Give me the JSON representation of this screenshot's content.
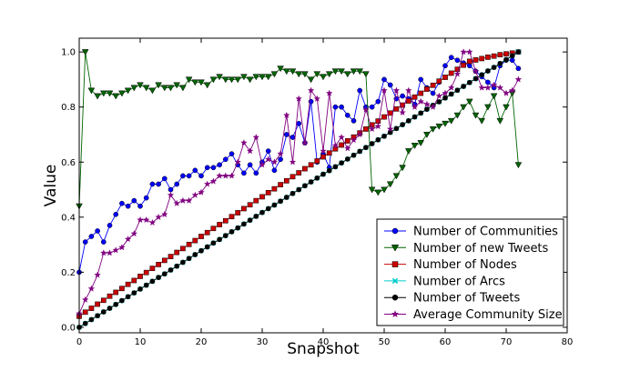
{
  "chart_data": {
    "type": "line",
    "title": "",
    "xlabel": "Snapshot",
    "ylabel": "Value",
    "xlim": [
      0,
      80
    ],
    "ylim": [
      -0.02,
      1.05
    ],
    "xticks": [
      0,
      10,
      20,
      30,
      40,
      50,
      60,
      70,
      80
    ],
    "yticks": [
      0.0,
      0.2,
      0.4,
      0.6,
      0.8,
      1.0
    ],
    "grid": false,
    "legend_position": "lower-right",
    "series": [
      {
        "name": "Number of Communities",
        "color": "#0000ff",
        "marker": "circle",
        "values": [
          0.2,
          0.31,
          0.33,
          0.35,
          0.31,
          0.37,
          0.41,
          0.45,
          0.44,
          0.46,
          0.44,
          0.47,
          0.52,
          0.52,
          0.54,
          0.5,
          0.52,
          0.55,
          0.55,
          0.57,
          0.55,
          0.58,
          0.58,
          0.59,
          0.61,
          0.63,
          0.59,
          0.56,
          0.59,
          0.56,
          0.6,
          0.64,
          0.57,
          0.61,
          0.7,
          0.69,
          0.74,
          0.67,
          0.82,
          0.6,
          0.63,
          0.58,
          0.8,
          0.8,
          0.77,
          0.75,
          0.86,
          0.8,
          0.8,
          0.82,
          0.9,
          0.88,
          0.83,
          0.84,
          0.83,
          0.81,
          0.9,
          0.87,
          0.85,
          0.89,
          0.95,
          0.98,
          0.97,
          0.96,
          0.95,
          0.93,
          0.91,
          0.89,
          0.87,
          0.95,
          0.97,
          0.97,
          0.94
        ]
      },
      {
        "name": "Number of new Tweets",
        "color": "#006400",
        "marker": "triangle-down",
        "values": [
          0.44,
          1.0,
          0.86,
          0.84,
          0.85,
          0.85,
          0.84,
          0.85,
          0.86,
          0.87,
          0.88,
          0.87,
          0.86,
          0.88,
          0.87,
          0.87,
          0.88,
          0.87,
          0.9,
          0.89,
          0.89,
          0.88,
          0.9,
          0.91,
          0.9,
          0.9,
          0.9,
          0.91,
          0.9,
          0.91,
          0.91,
          0.91,
          0.92,
          0.94,
          0.93,
          0.93,
          0.92,
          0.92,
          0.9,
          0.92,
          0.91,
          0.92,
          0.93,
          0.93,
          0.92,
          0.93,
          0.93,
          0.92,
          0.5,
          0.49,
          0.5,
          0.52,
          0.55,
          0.58,
          0.64,
          0.66,
          0.67,
          0.7,
          0.72,
          0.73,
          0.74,
          0.75,
          0.77,
          0.8,
          0.82,
          0.77,
          0.75,
          0.8,
          0.84,
          0.75,
          0.8,
          0.85,
          0.59
        ]
      },
      {
        "name": "Number of Nodes",
        "color": "#cc0000",
        "marker": "square",
        "values": [
          0.04,
          0.055,
          0.069,
          0.084,
          0.098,
          0.113,
          0.127,
          0.141,
          0.156,
          0.17,
          0.185,
          0.199,
          0.214,
          0.228,
          0.243,
          0.257,
          0.272,
          0.286,
          0.301,
          0.315,
          0.33,
          0.344,
          0.359,
          0.373,
          0.387,
          0.402,
          0.416,
          0.431,
          0.445,
          0.46,
          0.474,
          0.489,
          0.503,
          0.518,
          0.532,
          0.547,
          0.561,
          0.576,
          0.59,
          0.604,
          0.619,
          0.633,
          0.648,
          0.662,
          0.677,
          0.691,
          0.706,
          0.72,
          0.735,
          0.749,
          0.764,
          0.778,
          0.793,
          0.807,
          0.822,
          0.836,
          0.85,
          0.865,
          0.879,
          0.894,
          0.908,
          0.923,
          0.937,
          0.952,
          0.966,
          0.971,
          0.976,
          0.981,
          0.985,
          0.99,
          0.993,
          0.996,
          1.0
        ]
      },
      {
        "name": "Number of Arcs",
        "color": "#00cccc",
        "marker": "x",
        "values": [
          0.0,
          0.014,
          0.028,
          0.042,
          0.056,
          0.069,
          0.083,
          0.097,
          0.111,
          0.125,
          0.139,
          0.153,
          0.167,
          0.181,
          0.194,
          0.208,
          0.222,
          0.236,
          0.25,
          0.264,
          0.278,
          0.292,
          0.306,
          0.319,
          0.333,
          0.347,
          0.361,
          0.375,
          0.389,
          0.403,
          0.417,
          0.431,
          0.444,
          0.458,
          0.472,
          0.486,
          0.5,
          0.514,
          0.528,
          0.542,
          0.556,
          0.569,
          0.583,
          0.597,
          0.611,
          0.625,
          0.639,
          0.653,
          0.667,
          0.681,
          0.694,
          0.708,
          0.722,
          0.736,
          0.75,
          0.764,
          0.778,
          0.792,
          0.806,
          0.819,
          0.833,
          0.847,
          0.861,
          0.875,
          0.889,
          0.903,
          0.917,
          0.931,
          0.944,
          0.958,
          0.972,
          0.986,
          1.0
        ]
      },
      {
        "name": "Number of Tweets",
        "color": "#000000",
        "marker": "circle",
        "values": [
          0.0,
          0.014,
          0.028,
          0.042,
          0.056,
          0.069,
          0.083,
          0.097,
          0.111,
          0.125,
          0.139,
          0.153,
          0.167,
          0.181,
          0.194,
          0.208,
          0.222,
          0.236,
          0.25,
          0.264,
          0.278,
          0.292,
          0.306,
          0.319,
          0.333,
          0.347,
          0.361,
          0.375,
          0.389,
          0.403,
          0.417,
          0.431,
          0.444,
          0.458,
          0.472,
          0.486,
          0.5,
          0.514,
          0.528,
          0.542,
          0.556,
          0.569,
          0.583,
          0.597,
          0.611,
          0.625,
          0.639,
          0.653,
          0.667,
          0.681,
          0.694,
          0.708,
          0.722,
          0.736,
          0.75,
          0.764,
          0.778,
          0.792,
          0.806,
          0.819,
          0.833,
          0.847,
          0.861,
          0.875,
          0.889,
          0.903,
          0.917,
          0.931,
          0.944,
          0.958,
          0.972,
          0.986,
          1.0
        ]
      },
      {
        "name": "Average Community Size",
        "color": "#800080",
        "marker": "star",
        "values": [
          0.05,
          0.1,
          0.14,
          0.19,
          0.27,
          0.27,
          0.28,
          0.29,
          0.32,
          0.34,
          0.39,
          0.39,
          0.38,
          0.4,
          0.41,
          0.48,
          0.45,
          0.46,
          0.46,
          0.48,
          0.49,
          0.52,
          0.53,
          0.55,
          0.55,
          0.55,
          0.6,
          0.67,
          0.64,
          0.69,
          0.59,
          0.61,
          0.6,
          0.63,
          0.77,
          0.6,
          0.83,
          0.67,
          0.86,
          0.83,
          0.64,
          0.85,
          0.66,
          0.69,
          0.65,
          0.68,
          0.7,
          0.79,
          0.72,
          0.73,
          0.86,
          0.72,
          0.86,
          0.78,
          0.86,
          0.8,
          0.82,
          0.81,
          0.8,
          0.84,
          0.85,
          0.87,
          0.92,
          1.0,
          1.0,
          0.93,
          0.87,
          0.87,
          0.88,
          0.87,
          0.85,
          0.86,
          0.9
        ]
      }
    ]
  }
}
